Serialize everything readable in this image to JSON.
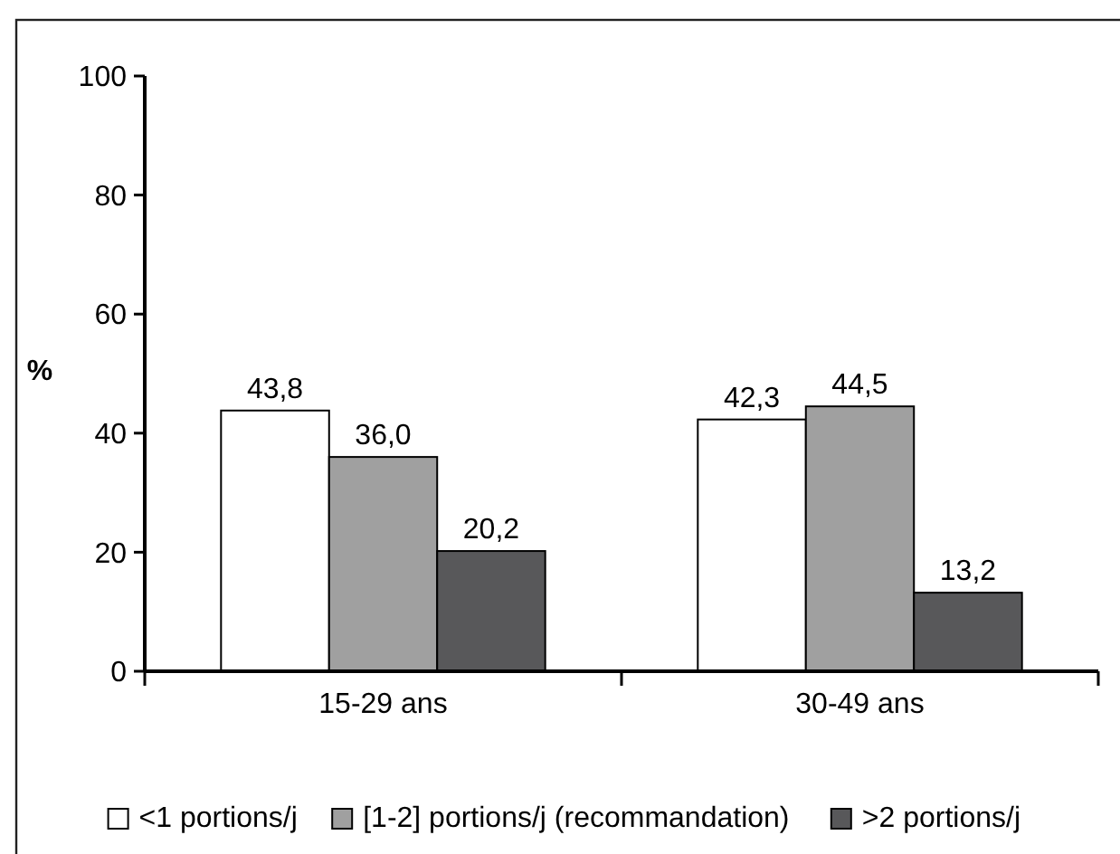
{
  "chart_data": {
    "type": "bar",
    "ylabel": "%",
    "categories": [
      "15-29 ans",
      "30-49 ans"
    ],
    "series": [
      {
        "name": "<1 portions/j",
        "color": "#ffffff",
        "values": [
          43.8,
          42.3
        ],
        "value_labels": [
          "43,8",
          "42,3"
        ]
      },
      {
        "name": "[1-2] portions/j (recommandation)",
        "color": "#a0a0a0",
        "values": [
          36.0,
          44.5
        ],
        "value_labels": [
          "36,0",
          "44,5"
        ]
      },
      {
        "name": ">2 portions/j",
        "color": "#58585a",
        "values": [
          20.2,
          13.2
        ],
        "value_labels": [
          "20,2",
          "13,2"
        ]
      }
    ],
    "ylim": [
      0,
      100
    ],
    "yticks": [
      0,
      20,
      40,
      60,
      80,
      100
    ],
    "grid": false,
    "legend": "bottom"
  }
}
